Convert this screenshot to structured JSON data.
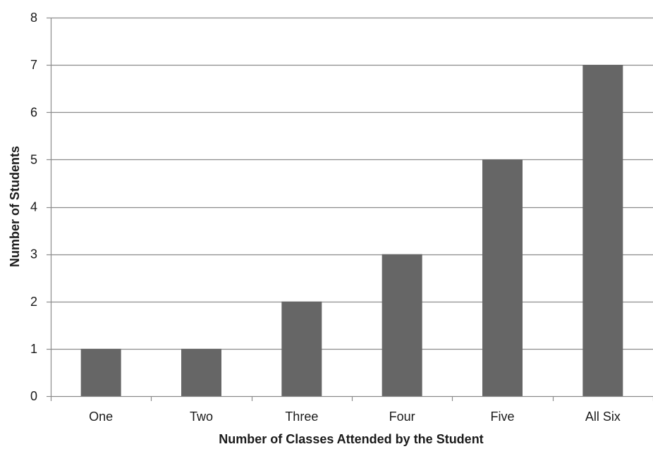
{
  "chart_data": {
    "type": "bar",
    "categories": [
      "One",
      "Two",
      "Three",
      "Four",
      "Five",
      "All Six"
    ],
    "values": [
      1,
      1,
      2,
      3,
      5,
      7
    ],
    "title": "",
    "xlabel": "Number of Classes Attended by the Student",
    "ylabel": "Number of Students",
    "ylim": [
      0,
      8
    ],
    "yticks": [
      "0",
      "1",
      "2",
      "3",
      "4",
      "5",
      "6",
      "7",
      "8"
    ],
    "grid": true,
    "legend": "none",
    "bar_color": "#666666",
    "grid_color": "#8c8c8c",
    "axis_color": "#8c8c8c"
  }
}
